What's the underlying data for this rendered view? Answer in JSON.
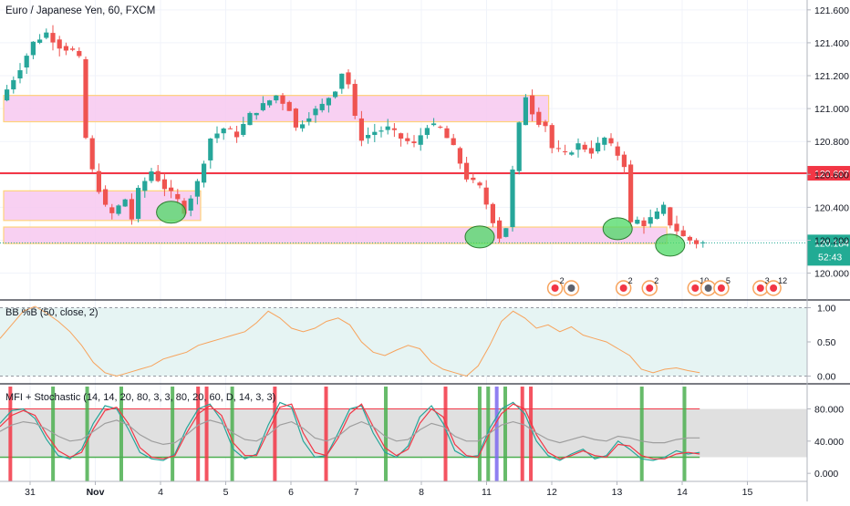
{
  "chart_data": [
    {
      "type": "candlestick",
      "title": "Euro / Japanese Yen, 60, FXCM",
      "ylim": [
        119.92,
        121.66
      ],
      "yticks": [
        120.0,
        120.2,
        120.4,
        120.6,
        120.8,
        121.0,
        121.2,
        121.4,
        121.6
      ],
      "ytick_labels": [
        "120.000",
        "120.200",
        "120.400",
        "120.600",
        "120.800",
        "121.000",
        "121.200",
        "121.400",
        "121.600"
      ],
      "x_range_days": [
        "Oct 31",
        "Nov 15"
      ],
      "xtick_labels": [
        "31",
        "Nov",
        "4",
        "5",
        "6",
        "7",
        "8",
        "11",
        "12",
        "13",
        "14",
        "15"
      ],
      "price_path": [
        [
          0,
          121.05
        ],
        [
          3,
          121.25
        ],
        [
          5,
          121.4
        ],
        [
          7,
          121.46
        ],
        [
          9,
          121.38
        ],
        [
          11,
          121.35
        ],
        [
          12,
          121.3
        ],
        [
          13,
          120.82
        ],
        [
          14,
          120.62
        ],
        [
          16,
          120.4
        ],
        [
          17,
          120.36
        ],
        [
          19,
          120.45
        ],
        [
          20,
          120.33
        ],
        [
          21,
          120.5
        ],
        [
          23,
          120.62
        ],
        [
          25,
          120.52
        ],
        [
          27,
          120.44
        ],
        [
          28,
          120.38
        ],
        [
          30,
          120.55
        ],
        [
          32,
          120.82
        ],
        [
          34,
          120.88
        ],
        [
          36,
          120.84
        ],
        [
          38,
          120.96
        ],
        [
          40,
          121.02
        ],
        [
          42,
          121.08
        ],
        [
          44,
          121.0
        ],
        [
          45,
          120.88
        ],
        [
          47,
          120.96
        ],
        [
          49,
          121.02
        ],
        [
          51,
          121.12
        ],
        [
          52,
          121.22
        ],
        [
          53,
          121.15
        ],
        [
          54,
          120.94
        ],
        [
          55,
          120.82
        ],
        [
          57,
          120.86
        ],
        [
          59,
          120.88
        ],
        [
          61,
          120.82
        ],
        [
          63,
          120.78
        ],
        [
          65,
          120.9
        ],
        [
          67,
          120.88
        ],
        [
          69,
          120.76
        ],
        [
          71,
          120.58
        ],
        [
          73,
          120.52
        ],
        [
          75,
          120.32
        ],
        [
          76,
          120.22
        ],
        [
          77,
          120.28
        ],
        [
          78,
          120.62
        ],
        [
          79,
          120.9
        ],
        [
          80,
          121.08
        ],
        [
          81,
          120.98
        ],
        [
          82,
          120.92
        ],
        [
          83,
          120.9
        ],
        [
          84,
          120.76
        ],
        [
          86,
          120.72
        ],
        [
          88,
          120.78
        ],
        [
          90,
          120.74
        ],
        [
          92,
          120.82
        ],
        [
          94,
          120.72
        ],
        [
          95,
          120.66
        ],
        [
          96,
          120.3
        ],
        [
          97,
          120.32
        ],
        [
          98,
          120.3
        ],
        [
          100,
          120.36
        ],
        [
          101,
          120.4
        ],
        [
          102,
          120.3
        ],
        [
          103,
          120.26
        ],
        [
          104,
          120.22
        ],
        [
          105,
          120.2
        ],
        [
          106,
          120.184
        ]
      ],
      "horizontal_lines": [
        {
          "price": 120.607,
          "color": "#f23645",
          "label": "120.607"
        }
      ],
      "last_price": {
        "value": 120.184,
        "label": "120.184",
        "countdown": "52:43",
        "color": "#22ab94"
      },
      "zones": [
        {
          "from_bar": 0,
          "to_bar": 83,
          "price_low": 120.92,
          "price_high": 121.08,
          "color": "#f7c8f0"
        },
        {
          "from_bar": 0,
          "to_bar": 30,
          "price_low": 120.32,
          "price_high": 120.5,
          "color": "#f7c8f0"
        },
        {
          "from_bar": 0,
          "to_bar": 101,
          "price_low": 120.18,
          "price_high": 120.28,
          "color": "#f7c8f0"
        }
      ],
      "circles": [
        {
          "bar": 25,
          "price": 120.37
        },
        {
          "bar": 72,
          "price": 120.22
        },
        {
          "bar": 93,
          "price": 120.27
        },
        {
          "bar": 101,
          "price": 120.17
        }
      ],
      "event_markers": [
        {
          "x_day": 8.05,
          "text": "2"
        },
        {
          "x_day": 8.3,
          "text": ""
        },
        {
          "x_day": 9.1,
          "text": "2"
        },
        {
          "x_day": 9.5,
          "text": "2"
        },
        {
          "x_day": 10.2,
          "text": "10"
        },
        {
          "x_day": 10.4,
          "text": ""
        },
        {
          "x_day": 10.6,
          "text": "5"
        },
        {
          "x_day": 11.2,
          "text": "3"
        },
        {
          "x_day": 11.4,
          "text": "12"
        }
      ],
      "colors": {
        "up": "#26a69a",
        "down": "#ef5350"
      }
    },
    {
      "type": "line",
      "title": "BB %B (50, close, 2)",
      "ylim": [
        -0.1,
        1.1
      ],
      "yticks": [
        0.0,
        0.5,
        1.0
      ],
      "ytick_labels": [
        "0.00",
        "0.50",
        "1.00"
      ],
      "band": [
        0.0,
        1.0
      ],
      "series": [
        {
          "color": "#f7a35c",
          "values": [
            0.55,
            0.75,
            0.95,
            1.02,
            0.92,
            0.8,
            0.65,
            0.45,
            0.2,
            0.05,
            0.0,
            0.05,
            0.1,
            0.15,
            0.25,
            0.3,
            0.35,
            0.45,
            0.5,
            0.55,
            0.6,
            0.65,
            0.78,
            0.95,
            0.85,
            0.7,
            0.65,
            0.7,
            0.8,
            0.85,
            0.75,
            0.5,
            0.35,
            0.3,
            0.38,
            0.45,
            0.4,
            0.2,
            0.1,
            0.05,
            0.0,
            0.15,
            0.45,
            0.8,
            0.95,
            0.85,
            0.7,
            0.75,
            0.65,
            0.72,
            0.6,
            0.55,
            0.5,
            0.4,
            0.3,
            0.1,
            0.05,
            0.1,
            0.12,
            0.08,
            0.05
          ]
        }
      ]
    },
    {
      "type": "line",
      "title": "MFI + Stochastic (14, 14, 20, 80, 3, 3, 80, 20, 60, D, 14, 3, 3)",
      "ylim": [
        -10,
        110
      ],
      "yticks": [
        0,
        40,
        80
      ],
      "ytick_labels": [
        "0.000",
        "40.000",
        "80.000"
      ],
      "levels": [
        20,
        80
      ],
      "series": [
        {
          "color": "#26a69a",
          "values": [
            62,
            78,
            80,
            68,
            42,
            22,
            18,
            30,
            62,
            84,
            80,
            55,
            26,
            18,
            16,
            24,
            56,
            80,
            86,
            66,
            30,
            18,
            24,
            60,
            88,
            82,
            40,
            20,
            22,
            50,
            80,
            84,
            50,
            26,
            20,
            34,
            70,
            84,
            62,
            28,
            20,
            22,
            56,
            80,
            88,
            74,
            40,
            22,
            16,
            24,
            30,
            18,
            22,
            40,
            30,
            18,
            16,
            20,
            28,
            24,
            26
          ]
        },
        {
          "color": "#f23645",
          "values": [
            58,
            72,
            78,
            72,
            48,
            28,
            20,
            26,
            55,
            78,
            82,
            62,
            32,
            20,
            18,
            22,
            50,
            74,
            84,
            72,
            38,
            22,
            22,
            52,
            82,
            86,
            50,
            26,
            22,
            44,
            74,
            86,
            58,
            32,
            22,
            30,
            62,
            80,
            70,
            36,
            22,
            20,
            50,
            74,
            86,
            80,
            48,
            26,
            18,
            22,
            28,
            22,
            20,
            36,
            34,
            22,
            18,
            18,
            24,
            26,
            24
          ]
        },
        {
          "color": "#9e9e9e",
          "values": [
            52,
            60,
            64,
            62,
            55,
            46,
            40,
            42,
            52,
            62,
            66,
            60,
            48,
            40,
            36,
            38,
            48,
            60,
            66,
            62,
            50,
            42,
            40,
            48,
            60,
            64,
            56,
            44,
            40,
            46,
            58,
            64,
            58,
            46,
            40,
            42,
            54,
            62,
            58,
            46,
            40,
            40,
            50,
            60,
            64,
            60,
            50,
            42,
            38,
            42,
            46,
            42,
            40,
            46,
            44,
            40,
            38,
            38,
            42,
            44,
            44
          ]
        }
      ],
      "signal_bars": [
        {
          "bar": 1,
          "color": "#f23645"
        },
        {
          "bar": 6,
          "color": "#4caf50"
        },
        {
          "bar": 10,
          "color": "#4caf50"
        },
        {
          "bar": 14,
          "color": "#4caf50"
        },
        {
          "bar": 20,
          "color": "#4caf50"
        },
        {
          "bar": 23,
          "color": "#f23645"
        },
        {
          "bar": 24,
          "color": "#f23645"
        },
        {
          "bar": 27,
          "color": "#4caf50"
        },
        {
          "bar": 32,
          "color": "#f23645"
        },
        {
          "bar": 38,
          "color": "#f23645"
        },
        {
          "bar": 45,
          "color": "#4caf50"
        },
        {
          "bar": 52,
          "color": "#f23645"
        },
        {
          "bar": 56,
          "color": "#4caf50"
        },
        {
          "bar": 57,
          "color": "#4caf50"
        },
        {
          "bar": 58,
          "color": "#7b68ee"
        },
        {
          "bar": 59,
          "color": "#4caf50"
        },
        {
          "bar": 61,
          "color": "#f23645"
        },
        {
          "bar": 62,
          "color": "#f23645"
        },
        {
          "bar": 75,
          "color": "#4caf50"
        },
        {
          "bar": 80,
          "color": "#4caf50"
        }
      ],
      "bar_count": 82
    }
  ]
}
